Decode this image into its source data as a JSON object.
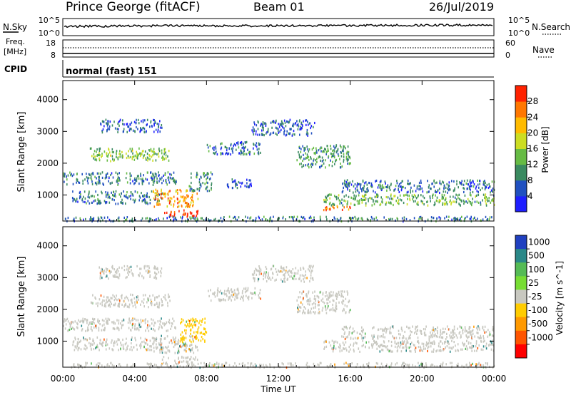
{
  "header": {
    "station": "Prince George (fitACF)",
    "beam": "Beam 01",
    "date": "26/Jul/2019"
  },
  "noise_panel": {
    "left_label": "N.Sky",
    "right_label": "N.Search",
    "left_ticks": [
      "10^5",
      "10^0"
    ],
    "right_ticks": [
      "10^5",
      "10^0"
    ]
  },
  "freq_panel": {
    "left_label_1": "Freq.",
    "left_label_2": "[MHz]",
    "right_label": "Nave",
    "left_ticks": [
      "18",
      "8"
    ],
    "right_ticks": [
      "60",
      "0"
    ]
  },
  "cpid_panel": {
    "label": "CPID",
    "mode": "normal (fast) 151"
  },
  "x_axis": {
    "title": "Time UT",
    "ticks": [
      "00:00",
      "04:00",
      "08:00",
      "12:00",
      "16:00",
      "20:00",
      "00:00"
    ]
  },
  "colorbars": {
    "power": {
      "title": "Power [dB]",
      "ticks": [
        "4",
        "8",
        "12",
        "16",
        "20",
        "24",
        "28"
      ],
      "colors": [
        "#1e1eff",
        "#2050c0",
        "#3a8a60",
        "#66bb44",
        "#ccdd22",
        "#ffbb00",
        "#ff7700",
        "#ff2200"
      ]
    },
    "velocity": {
      "title": "Velocity [m s^-1]",
      "ticks": [
        "1000",
        "500",
        "100",
        "25",
        "-25",
        "-100",
        "-500",
        "-1000"
      ],
      "colors": [
        "#2040c0",
        "#2a8888",
        "#55bb55",
        "#77dd33",
        "#c8c8c0",
        "#ffcc00",
        "#ff9900",
        "#ff5500",
        "#ff0000"
      ]
    }
  },
  "chart_data": [
    {
      "type": "heatmap",
      "title": "",
      "xlabel": "Time UT",
      "ylabel": "Slant Range [km]",
      "xlim": [
        0,
        24
      ],
      "ylim": [
        180,
        4600
      ],
      "yticks": [
        1000,
        2000,
        3000,
        4000
      ],
      "colorbar_label": "Power [dB]",
      "colorbar_range": [
        0,
        30
      ],
      "backscatter_regions": [
        {
          "t0": 0.0,
          "t1": 6.3,
          "r0": 1350,
          "r1": 1750,
          "power": 8
        },
        {
          "t0": 1.5,
          "t1": 6.0,
          "r0": 2100,
          "r1": 2500,
          "power": 14
        },
        {
          "t0": 0.5,
          "t1": 5.5,
          "r0": 750,
          "r1": 1150,
          "power": 8
        },
        {
          "t0": 2.0,
          "t1": 5.5,
          "r0": 3000,
          "r1": 3400,
          "power": 6
        },
        {
          "t0": 5.0,
          "t1": 7.5,
          "r0": 650,
          "r1": 1200,
          "power": 22
        },
        {
          "t0": 7.0,
          "t1": 8.3,
          "r0": 1150,
          "r1": 1750,
          "power": 9
        },
        {
          "t0": 5.5,
          "t1": 7.5,
          "r0": 350,
          "r1": 550,
          "power": 28
        },
        {
          "t0": 9.0,
          "t1": 10.5,
          "r0": 1250,
          "r1": 1550,
          "power": 6
        },
        {
          "t0": 8.0,
          "t1": 11.0,
          "r0": 2300,
          "r1": 2700,
          "power": 7
        },
        {
          "t0": 10.5,
          "t1": 14.0,
          "r0": 2900,
          "r1": 3400,
          "power": 6
        },
        {
          "t0": 13.0,
          "t1": 16.0,
          "r0": 1900,
          "r1": 2600,
          "power": 10
        },
        {
          "t0": 14.5,
          "t1": 24.0,
          "r0": 700,
          "r1": 1050,
          "power": 12
        },
        {
          "t0": 15.5,
          "t1": 24.0,
          "r0": 1100,
          "r1": 1500,
          "power": 7
        },
        {
          "t0": 14.5,
          "t1": 16.0,
          "r0": 550,
          "r1": 700,
          "power": 24
        },
        {
          "t0": 0.0,
          "t1": 24.0,
          "r0": 200,
          "r1": 350,
          "power": 8
        }
      ]
    },
    {
      "type": "heatmap",
      "title": "",
      "xlabel": "Time UT",
      "ylabel": "Slant Range [km]",
      "xlim": [
        0,
        24
      ],
      "ylim": [
        180,
        4600
      ],
      "yticks": [
        1000,
        2000,
        3000,
        4000
      ],
      "colorbar_label": "Velocity [m s^-1]",
      "colorbar_range": [
        -1000,
        1000
      ],
      "backscatter_regions": [
        {
          "t0": 0.0,
          "t1": 6.3,
          "r0": 1350,
          "r1": 1750,
          "velocity": 0
        },
        {
          "t0": 1.5,
          "t1": 6.0,
          "r0": 2100,
          "r1": 2500,
          "velocity": 0
        },
        {
          "t0": 0.5,
          "t1": 5.5,
          "r0": 750,
          "r1": 1150,
          "velocity": 0
        },
        {
          "t0": 2.0,
          "t1": 5.5,
          "r0": 3000,
          "r1": 3400,
          "velocity": 0
        },
        {
          "t0": 5.0,
          "t1": 7.5,
          "r0": 650,
          "r1": 1200,
          "velocity": 0
        },
        {
          "t0": 6.5,
          "t1": 8.0,
          "r0": 1000,
          "r1": 1750,
          "velocity": -80
        },
        {
          "t0": 5.5,
          "t1": 7.5,
          "r0": 350,
          "r1": 550,
          "velocity": 10
        },
        {
          "t0": 8.0,
          "t1": 11.0,
          "r0": 2300,
          "r1": 2700,
          "velocity": 0
        },
        {
          "t0": 10.5,
          "t1": 14.0,
          "r0": 2900,
          "r1": 3400,
          "velocity": 0
        },
        {
          "t0": 13.0,
          "t1": 16.0,
          "r0": 1900,
          "r1": 2600,
          "velocity": 0
        },
        {
          "t0": 14.5,
          "t1": 24.0,
          "r0": 700,
          "r1": 1050,
          "velocity": 0
        },
        {
          "t0": 15.5,
          "t1": 24.0,
          "r0": 1100,
          "r1": 1500,
          "velocity": 0
        },
        {
          "t0": 0.0,
          "t1": 24.0,
          "r0": 200,
          "r1": 350,
          "velocity": 0
        }
      ]
    }
  ]
}
